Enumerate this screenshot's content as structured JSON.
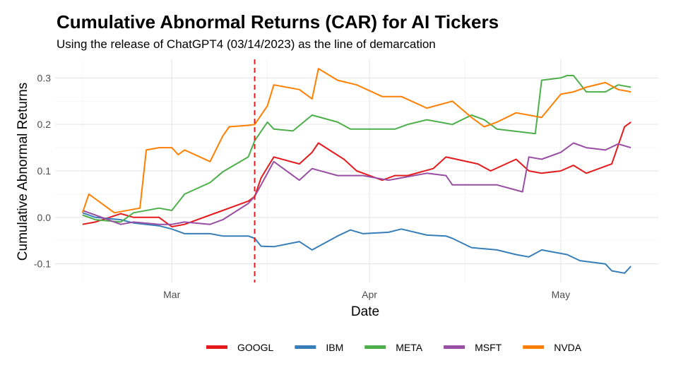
{
  "chart_data": {
    "type": "line",
    "title": "Cumulative Abnormal Returns (CAR) for AI Tickers",
    "subtitle": "Using the release of ChatGPT4 (03/14/2023) as the line of demarcation",
    "xlabel": "Date",
    "ylabel": "Cumulative Abnormal Returns",
    "x_ticks": [
      "Mar",
      "Apr",
      "May"
    ],
    "x_tick_dates": [
      "2023-03-01",
      "2023-04-01",
      "2023-05-01"
    ],
    "xlim": [
      "2023-02-15",
      "2023-05-12"
    ],
    "y_ticks": [
      -0.1,
      0.0,
      0.1,
      0.2,
      0.3
    ],
    "ylim": [
      -0.14,
      0.34
    ],
    "grid": true,
    "legend_position": "bottom",
    "vline": {
      "date": "2023-03-14",
      "style": "dashed",
      "color": "#e41a1c"
    },
    "series": [
      {
        "name": "GOOGL",
        "color": "#e41a1c",
        "points": [
          [
            "2023-02-15",
            -0.015
          ],
          [
            "2023-02-17",
            -0.01
          ],
          [
            "2023-02-21",
            0.008
          ],
          [
            "2023-02-23",
            0.0
          ],
          [
            "2023-02-27",
            0.0
          ],
          [
            "2023-03-01",
            -0.02
          ],
          [
            "2023-03-03",
            -0.015
          ],
          [
            "2023-03-07",
            0.005
          ],
          [
            "2023-03-09",
            0.015
          ],
          [
            "2023-03-13",
            0.035
          ],
          [
            "2023-03-14",
            0.045
          ],
          [
            "2023-03-15",
            0.085
          ],
          [
            "2023-03-17",
            0.13
          ],
          [
            "2023-03-21",
            0.115
          ],
          [
            "2023-03-23",
            0.14
          ],
          [
            "2023-03-24",
            0.16
          ],
          [
            "2023-03-28",
            0.125
          ],
          [
            "2023-03-30",
            0.1
          ],
          [
            "2023-04-03",
            0.08
          ],
          [
            "2023-04-05",
            0.09
          ],
          [
            "2023-04-07",
            0.09
          ],
          [
            "2023-04-11",
            0.105
          ],
          [
            "2023-04-13",
            0.13
          ],
          [
            "2023-04-18",
            0.115
          ],
          [
            "2023-04-20",
            0.1
          ],
          [
            "2023-04-24",
            0.125
          ],
          [
            "2023-04-26",
            0.1
          ],
          [
            "2023-04-28",
            0.095
          ],
          [
            "2023-05-01",
            0.1
          ],
          [
            "2023-05-03",
            0.112
          ],
          [
            "2023-05-05",
            0.095
          ],
          [
            "2023-05-09",
            0.115
          ],
          [
            "2023-05-11",
            0.195
          ],
          [
            "2023-05-12",
            0.205
          ]
        ]
      },
      {
        "name": "IBM",
        "color": "#377eb8",
        "points": [
          [
            "2023-02-15",
            0.01
          ],
          [
            "2023-02-17",
            0.0
          ],
          [
            "2023-02-21",
            -0.005
          ],
          [
            "2023-02-23",
            -0.012
          ],
          [
            "2023-02-27",
            -0.018
          ],
          [
            "2023-03-01",
            -0.025
          ],
          [
            "2023-03-03",
            -0.035
          ],
          [
            "2023-03-07",
            -0.035
          ],
          [
            "2023-03-09",
            -0.04
          ],
          [
            "2023-03-13",
            -0.04
          ],
          [
            "2023-03-14",
            -0.045
          ],
          [
            "2023-03-15",
            -0.062
          ],
          [
            "2023-03-17",
            -0.063
          ],
          [
            "2023-03-21",
            -0.052
          ],
          [
            "2023-03-23",
            -0.07
          ],
          [
            "2023-03-27",
            -0.04
          ],
          [
            "2023-03-29",
            -0.027
          ],
          [
            "2023-03-31",
            -0.035
          ],
          [
            "2023-04-04",
            -0.032
          ],
          [
            "2023-04-06",
            -0.025
          ],
          [
            "2023-04-10",
            -0.038
          ],
          [
            "2023-04-13",
            -0.04
          ],
          [
            "2023-04-14",
            -0.045
          ],
          [
            "2023-04-17",
            -0.065
          ],
          [
            "2023-04-21",
            -0.07
          ],
          [
            "2023-04-24",
            -0.08
          ],
          [
            "2023-04-26",
            -0.085
          ],
          [
            "2023-04-28",
            -0.07
          ],
          [
            "2023-05-02",
            -0.08
          ],
          [
            "2023-05-04",
            -0.093
          ],
          [
            "2023-05-08",
            -0.1
          ],
          [
            "2023-05-09",
            -0.115
          ],
          [
            "2023-05-11",
            -0.12
          ],
          [
            "2023-05-12",
            -0.105
          ]
        ]
      },
      {
        "name": "META",
        "color": "#4daf4a",
        "points": [
          [
            "2023-02-15",
            0.005
          ],
          [
            "2023-02-17",
            -0.005
          ],
          [
            "2023-02-21",
            -0.01
          ],
          [
            "2023-02-23",
            0.01
          ],
          [
            "2023-02-27",
            0.02
          ],
          [
            "2023-03-01",
            0.015
          ],
          [
            "2023-03-03",
            0.05
          ],
          [
            "2023-03-07",
            0.075
          ],
          [
            "2023-03-09",
            0.098
          ],
          [
            "2023-03-13",
            0.13
          ],
          [
            "2023-03-14",
            0.165
          ],
          [
            "2023-03-16",
            0.205
          ],
          [
            "2023-03-17",
            0.19
          ],
          [
            "2023-03-20",
            0.186
          ],
          [
            "2023-03-23",
            0.22
          ],
          [
            "2023-03-27",
            0.205
          ],
          [
            "2023-03-29",
            0.19
          ],
          [
            "2023-03-31",
            0.19
          ],
          [
            "2023-04-05",
            0.19
          ],
          [
            "2023-04-07",
            0.2
          ],
          [
            "2023-04-10",
            0.21
          ],
          [
            "2023-04-14",
            0.2
          ],
          [
            "2023-04-17",
            0.22
          ],
          [
            "2023-04-19",
            0.21
          ],
          [
            "2023-04-21",
            0.19
          ],
          [
            "2023-04-24",
            0.185
          ],
          [
            "2023-04-27",
            0.18
          ],
          [
            "2023-04-28",
            0.295
          ],
          [
            "2023-05-01",
            0.3
          ],
          [
            "2023-05-02",
            0.305
          ],
          [
            "2023-05-03",
            0.305
          ],
          [
            "2023-05-05",
            0.27
          ],
          [
            "2023-05-08",
            0.27
          ],
          [
            "2023-05-10",
            0.285
          ],
          [
            "2023-05-12",
            0.28
          ]
        ]
      },
      {
        "name": "MSFT",
        "color": "#984ea3",
        "points": [
          [
            "2023-02-15",
            0.015
          ],
          [
            "2023-02-17",
            0.005
          ],
          [
            "2023-02-21",
            -0.015
          ],
          [
            "2023-02-23",
            -0.01
          ],
          [
            "2023-02-27",
            -0.015
          ],
          [
            "2023-03-01",
            -0.015
          ],
          [
            "2023-03-03",
            -0.01
          ],
          [
            "2023-03-07",
            -0.015
          ],
          [
            "2023-03-09",
            -0.005
          ],
          [
            "2023-03-13",
            0.03
          ],
          [
            "2023-03-14",
            0.045
          ],
          [
            "2023-03-15",
            0.07
          ],
          [
            "2023-03-17",
            0.12
          ],
          [
            "2023-03-21",
            0.08
          ],
          [
            "2023-03-23",
            0.105
          ],
          [
            "2023-03-27",
            0.09
          ],
          [
            "2023-03-31",
            0.09
          ],
          [
            "2023-04-04",
            0.08
          ],
          [
            "2023-04-06",
            0.085
          ],
          [
            "2023-04-10",
            0.095
          ],
          [
            "2023-04-13",
            0.09
          ],
          [
            "2023-04-14",
            0.07
          ],
          [
            "2023-04-18",
            0.07
          ],
          [
            "2023-04-21",
            0.07
          ],
          [
            "2023-04-25",
            0.055
          ],
          [
            "2023-04-26",
            0.13
          ],
          [
            "2023-04-28",
            0.125
          ],
          [
            "2023-05-01",
            0.14
          ],
          [
            "2023-05-03",
            0.16
          ],
          [
            "2023-05-05",
            0.15
          ],
          [
            "2023-05-08",
            0.145
          ],
          [
            "2023-05-10",
            0.158
          ],
          [
            "2023-05-12",
            0.15
          ]
        ]
      },
      {
        "name": "NVDA",
        "color": "#ff7f00",
        "points": [
          [
            "2023-02-15",
            0.01
          ],
          [
            "2023-02-16",
            0.05
          ],
          [
            "2023-02-17",
            0.04
          ],
          [
            "2023-02-20",
            0.01
          ],
          [
            "2023-02-24",
            0.02
          ],
          [
            "2023-02-25",
            0.145
          ],
          [
            "2023-02-27",
            0.15
          ],
          [
            "2023-03-01",
            0.15
          ],
          [
            "2023-03-02",
            0.135
          ],
          [
            "2023-03-03",
            0.145
          ],
          [
            "2023-03-07",
            0.12
          ],
          [
            "2023-03-09",
            0.175
          ],
          [
            "2023-03-10",
            0.195
          ],
          [
            "2023-03-13",
            0.198
          ],
          [
            "2023-03-14",
            0.2
          ],
          [
            "2023-03-16",
            0.24
          ],
          [
            "2023-03-17",
            0.285
          ],
          [
            "2023-03-21",
            0.275
          ],
          [
            "2023-03-23",
            0.255
          ],
          [
            "2023-03-24",
            0.32
          ],
          [
            "2023-03-27",
            0.295
          ],
          [
            "2023-03-30",
            0.285
          ],
          [
            "2023-04-03",
            0.26
          ],
          [
            "2023-04-06",
            0.26
          ],
          [
            "2023-04-10",
            0.235
          ],
          [
            "2023-04-14",
            0.25
          ],
          [
            "2023-04-17",
            0.215
          ],
          [
            "2023-04-19",
            0.195
          ],
          [
            "2023-04-21",
            0.205
          ],
          [
            "2023-04-24",
            0.225
          ],
          [
            "2023-04-28",
            0.215
          ],
          [
            "2023-05-01",
            0.265
          ],
          [
            "2023-05-03",
            0.27
          ],
          [
            "2023-05-05",
            0.28
          ],
          [
            "2023-05-08",
            0.29
          ],
          [
            "2023-05-10",
            0.275
          ],
          [
            "2023-05-12",
            0.27
          ]
        ]
      }
    ]
  }
}
